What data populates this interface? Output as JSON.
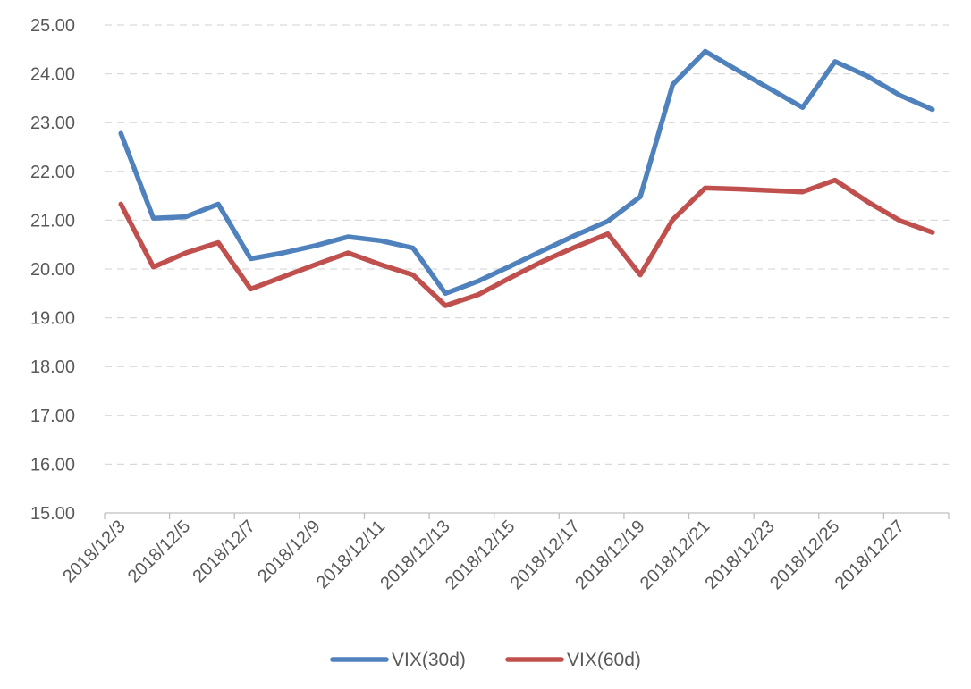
{
  "chart_data": {
    "type": "line",
    "title": "",
    "xlabel": "",
    "ylabel": "",
    "ylim": [
      15,
      25
    ],
    "y_ticks": [
      "15.00",
      "16.00",
      "17.00",
      "18.00",
      "19.00",
      "20.00",
      "21.00",
      "22.00",
      "23.00",
      "24.00",
      "25.00"
    ],
    "x": [
      "2018/12/3",
      "2018/12/4",
      "2018/12/5",
      "2018/12/6",
      "2018/12/7",
      "2018/12/8",
      "2018/12/9",
      "2018/12/10",
      "2018/12/11",
      "2018/12/12",
      "2018/12/13",
      "2018/12/14",
      "2018/12/15",
      "2018/12/16",
      "2018/12/17",
      "2018/12/18",
      "2018/12/19",
      "2018/12/20",
      "2018/12/21",
      "2018/12/22",
      "2018/12/23",
      "2018/12/24",
      "2018/12/25",
      "2018/12/26",
      "2018/12/27",
      "2018/12/28"
    ],
    "x_tick_labels": [
      "2018/12/3",
      "2018/12/5",
      "2018/12/7",
      "2018/12/9",
      "2018/12/11",
      "2018/12/13",
      "2018/12/15",
      "2018/12/17",
      "2018/12/19",
      "2018/12/21",
      "2018/12/23",
      "2018/12/25",
      "2018/12/27"
    ],
    "series": [
      {
        "name": "VIX(30d)",
        "color": "#4F81BD",
        "values": [
          22.78,
          21.04,
          21.07,
          21.33,
          20.21,
          20.33,
          20.48,
          20.66,
          20.58,
          20.43,
          19.5,
          19.75,
          20.06,
          20.38,
          20.69,
          20.98,
          21.48,
          23.78,
          24.46,
          24.07,
          23.69,
          23.31,
          24.25,
          23.95,
          23.56,
          23.27
        ]
      },
      {
        "name": "VIX(60d)",
        "color": "#C0504D",
        "values": [
          21.33,
          20.04,
          20.33,
          20.54,
          19.59,
          19.84,
          20.09,
          20.33,
          20.09,
          19.88,
          19.25,
          19.47,
          19.82,
          20.16,
          20.45,
          20.72,
          19.88,
          21.01,
          21.66,
          21.64,
          21.61,
          21.58,
          21.82,
          21.38,
          20.99,
          20.75
        ]
      }
    ],
    "grid": true,
    "legend": "bottom"
  }
}
